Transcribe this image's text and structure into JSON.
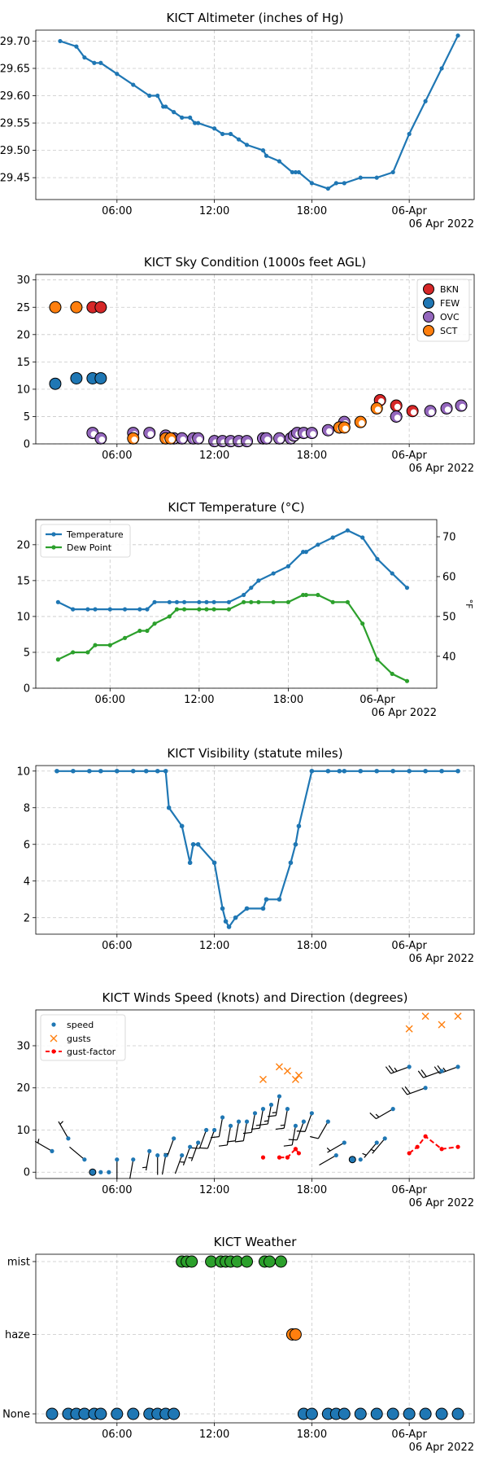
{
  "chart_data": [
    {
      "type": "line",
      "title": "KICT Altimeter (inches of Hg)",
      "date_label": "06 Apr 2022",
      "x_ticks": [
        "06:00",
        "12:00",
        "18:00",
        "06-Apr"
      ],
      "ylim": [
        29.41,
        29.72
      ],
      "y_ticks": [
        "29.45",
        "29.50",
        "29.55",
        "29.60",
        "29.65",
        "29.70"
      ],
      "grid": true,
      "color": "#1f77b4",
      "series": [
        {
          "name": "",
          "x": [
            2.5,
            3.5,
            4.0,
            4.6,
            5.0,
            6.0,
            7.0,
            8.0,
            8.5,
            8.85,
            9.0,
            9.5,
            10.0,
            10.5,
            10.8,
            11.0,
            12.0,
            12.5,
            13.0,
            13.5,
            14.0,
            15.0,
            15.2,
            16.0,
            16.8,
            17.0,
            17.2,
            18.0,
            19.0,
            19.5,
            20.0,
            21.0,
            22.0,
            23.0,
            24.0,
            25.0,
            26.0,
            27.0
          ],
          "y": [
            29.7,
            29.69,
            29.67,
            29.66,
            29.66,
            29.64,
            29.62,
            29.6,
            29.6,
            29.58,
            29.58,
            29.57,
            29.56,
            29.56,
            29.55,
            29.55,
            29.54,
            29.53,
            29.53,
            29.52,
            29.51,
            29.5,
            29.49,
            29.48,
            29.46,
            29.46,
            29.46,
            29.44,
            29.43,
            29.44,
            29.44,
            29.45,
            29.45,
            29.46,
            29.53,
            29.59,
            29.65,
            29.71
          ]
        }
      ]
    },
    {
      "type": "scatter",
      "title": "KICT Sky Condition (1000s feet AGL)",
      "date_label": "06 Apr 2022",
      "x_ticks": [
        "06:00",
        "12:00",
        "18:00",
        "06-Apr"
      ],
      "ylim": [
        0,
        31
      ],
      "y_ticks": [
        "0",
        "5",
        "10",
        "15",
        "20",
        "25",
        "30"
      ],
      "grid": true,
      "legend_position": "top-right",
      "series": [
        {
          "name": "BKN",
          "color": "#d62728",
          "x": [
            4.5,
            5.0,
            22.2,
            23.2,
            24.2
          ],
          "y": [
            25,
            25,
            8,
            7,
            6
          ]
        },
        {
          "name": "FEW",
          "color": "#1f77b4",
          "x": [
            2.2,
            3.5,
            4.5,
            5.0
          ],
          "y": [
            11,
            12,
            12,
            12
          ]
        },
        {
          "name": "OVC",
          "color": "#9467bd",
          "x": [
            4.5,
            5.0,
            7.0,
            8.0,
            9.0,
            9.5,
            10.0,
            10.7,
            11.0,
            12.0,
            12.5,
            13.0,
            13.5,
            14.0,
            15.0,
            15.2,
            16.0,
            16.7,
            16.9,
            17.1,
            17.5,
            18.0,
            19.0,
            19.7,
            20.0,
            23.2,
            25.3,
            26.3,
            27.2
          ],
          "y": [
            2,
            1,
            2,
            2,
            1.5,
            1,
            1,
            1,
            1,
            0.5,
            0.5,
            0.5,
            0.5,
            0.5,
            1,
            1,
            1,
            1,
            1.5,
            2,
            2,
            2,
            2.5,
            3,
            4,
            5,
            6,
            6.5,
            7
          ]
        },
        {
          "name": "SCT",
          "color": "#ff7f0e",
          "x": [
            2.2,
            3.5,
            7.0,
            9.0,
            9.3,
            19.7,
            20.0,
            21.0,
            22.0
          ],
          "y": [
            25,
            25,
            1,
            1,
            1,
            3,
            3,
            4,
            6.5
          ]
        }
      ]
    },
    {
      "type": "line",
      "title": "KICT Temperature (°C)",
      "date_label": "06 Apr 2022",
      "x_ticks": [
        "06:00",
        "12:00",
        "18:00",
        "06-Apr"
      ],
      "ylim": [
        0,
        23.5
      ],
      "y_ticks": [
        "0",
        "5",
        "10",
        "15",
        "20"
      ],
      "y2_ticks": [
        "40",
        "50",
        "60",
        "70"
      ],
      "y2_label": "°F",
      "grid": true,
      "legend_position": "top-left",
      "series": [
        {
          "name": "Temperature",
          "color": "#1f77b4",
          "x": [
            2.5,
            3.5,
            4.5,
            5.0,
            6.0,
            7.0,
            8.0,
            8.5,
            9.0,
            10.0,
            10.5,
            11.0,
            12.0,
            12.5,
            13.0,
            14.0,
            15.0,
            15.5,
            16.0,
            17.0,
            18.0,
            19.0,
            19.2,
            20.0,
            21.0,
            22.0,
            23.0,
            24.0,
            25.0,
            26.0
          ],
          "y": [
            12,
            11,
            11,
            11,
            11,
            11,
            11,
            11,
            12,
            12,
            12,
            12,
            12,
            12,
            12,
            12,
            13,
            14,
            15,
            16,
            17,
            19,
            19,
            20,
            21,
            22,
            21,
            18,
            16,
            14
          ]
        },
        {
          "name": "Dew Point",
          "color": "#2ca02c",
          "x": [
            2.5,
            3.5,
            4.5,
            5.0,
            6.0,
            7.0,
            8.0,
            8.5,
            9.0,
            10.0,
            10.5,
            11.0,
            12.0,
            12.5,
            13.0,
            14.0,
            15.0,
            15.5,
            16.0,
            17.0,
            18.0,
            19.0,
            19.2,
            20.0,
            21.0,
            22.0,
            23.0,
            24.0,
            25.0,
            26.0
          ],
          "y": [
            4,
            5,
            5,
            6,
            6,
            7,
            8,
            8,
            9,
            10,
            11,
            11,
            11,
            11,
            11,
            11,
            12,
            12,
            12,
            12,
            12,
            13,
            13,
            13,
            12,
            12,
            9,
            4,
            2,
            1
          ]
        }
      ]
    },
    {
      "type": "line",
      "title": "KICT Visibility (statute miles)",
      "date_label": "06 Apr 2022",
      "x_ticks": [
        "06:00",
        "12:00",
        "18:00",
        "06-Apr"
      ],
      "ylim": [
        1.1,
        10.3
      ],
      "y_ticks": [
        "2",
        "4",
        "6",
        "8",
        "10"
      ],
      "grid": true,
      "color": "#1f77b4",
      "series": [
        {
          "name": "",
          "x": [
            2.3,
            3.3,
            4.3,
            5.0,
            6.0,
            7.0,
            7.8,
            8.5,
            9.0,
            9.2,
            10.0,
            10.5,
            10.7,
            11.0,
            12.0,
            12.5,
            12.7,
            12.9,
            13.3,
            14.0,
            15.0,
            15.2,
            16.0,
            16.7,
            17.0,
            17.2,
            18.0,
            19.0,
            19.7,
            20.0,
            21.0,
            22.0,
            23.0,
            24.0,
            25.0,
            26.0,
            27.0
          ],
          "y": [
            10,
            10,
            10,
            10,
            10,
            10,
            10,
            10,
            10,
            8,
            7,
            5,
            6,
            6,
            5,
            2.5,
            1.8,
            1.5,
            2,
            2.5,
            2.5,
            3,
            3,
            5,
            6,
            7,
            10,
            10,
            10,
            10,
            10,
            10,
            10,
            10,
            10,
            10,
            10
          ]
        }
      ]
    },
    {
      "type": "scatter",
      "title": "KICT Winds Speed (knots) and Direction (degrees)",
      "date_label": "06 Apr 2022",
      "x_ticks": [
        "06:00",
        "12:00",
        "18:00",
        "06-Apr"
      ],
      "ylim": [
        -1.5,
        38.5
      ],
      "y_ticks": [
        "0",
        "10",
        "20",
        "30"
      ],
      "grid": true,
      "legend_position": "top-left",
      "series": [
        {
          "name": "speed",
          "color": "#1f77b4",
          "x": [
            2.0,
            3.0,
            4.0,
            4.5,
            5.0,
            5.5,
            6.0,
            7.0,
            8.0,
            8.5,
            9.0,
            9.5,
            10.0,
            10.5,
            11.0,
            11.5,
            12.0,
            12.5,
            13.0,
            13.5,
            14.0,
            14.5,
            15.0,
            15.5,
            16.0,
            16.5,
            17.0,
            17.5,
            18.0,
            19.0,
            19.5,
            20.0,
            21.0,
            22.0,
            22.5,
            23.0,
            24.0,
            25.0,
            26.0,
            27.0
          ],
          "y": [
            5,
            8,
            3,
            0,
            0,
            0,
            3,
            3,
            5,
            4,
            4,
            8,
            4,
            6,
            7,
            10,
            10,
            13,
            11,
            12,
            12,
            14,
            15,
            16,
            18,
            15,
            11,
            12,
            14,
            12,
            4,
            7,
            3,
            7,
            8,
            15,
            25,
            20,
            24,
            25
          ]
        },
        {
          "name": "gusts",
          "color": "#ff7f0e",
          "x": [
            15.0,
            16.0,
            16.5,
            17.0,
            17.2,
            24.0,
            25.0,
            26.0,
            27.0
          ],
          "y": [
            22,
            25,
            24,
            22,
            23,
            34,
            37,
            35,
            37
          ]
        },
        {
          "name": "gust-factor",
          "color": "#ff0000",
          "segments": [
            {
              "x": [
                15.0
              ],
              "y": [
                3.5
              ]
            },
            {
              "x": [
                16.0,
                16.5,
                17.0,
                17.2
              ],
              "y": [
                3.5,
                3.5,
                5.5,
                4.5
              ]
            },
            {
              "x": [
                24.0,
                24.5,
                25.0,
                26.0,
                27.0
              ],
              "y": [
                4.5,
                6,
                8.5,
                5.5,
                6
              ]
            }
          ]
        }
      ],
      "barbs": {
        "x": [
          2.0,
          3.0,
          4.0,
          6.0,
          7.0,
          8.0,
          8.5,
          9.0,
          9.5,
          10.0,
          10.5,
          11.0,
          11.5,
          12.0,
          12.5,
          13.0,
          13.5,
          14.0,
          14.5,
          15.0,
          15.5,
          16.0,
          16.5,
          17.0,
          17.5,
          18.0,
          19.0,
          19.5,
          20.0,
          22.0,
          22.5,
          23.0,
          24.0,
          25.0,
          26.0,
          27.0
        ],
        "y": [
          5,
          8,
          3,
          3,
          3,
          5,
          4,
          4,
          8,
          4,
          6,
          7,
          10,
          10,
          13,
          11,
          12,
          12,
          14,
          15,
          16,
          18,
          15,
          11,
          12,
          14,
          12,
          4,
          7,
          7,
          8,
          15,
          25,
          20,
          24,
          25
        ],
        "dir_deg": [
          300,
          330,
          310,
          180,
          190,
          190,
          180,
          190,
          200,
          200,
          200,
          200,
          200,
          200,
          190,
          190,
          190,
          190,
          190,
          190,
          190,
          190,
          190,
          190,
          200,
          200,
          210,
          240,
          240,
          220,
          220,
          240,
          250,
          250,
          250,
          250
        ]
      },
      "calm_markers": {
        "x": [
          4.5,
          20.5
        ],
        "y": [
          0,
          3
        ]
      }
    },
    {
      "type": "scatter",
      "title": "KICT Weather",
      "date_label": "06 Apr 2022",
      "x_ticks": [
        "06:00",
        "12:00",
        "18:00",
        "06-Apr"
      ],
      "categories": [
        "None",
        "haze",
        "mist"
      ],
      "grid": true,
      "series": [
        {
          "name": "mist",
          "color": "#2ca02c",
          "x": [
            10.0,
            10.3,
            10.6,
            11.8,
            12.4,
            12.7,
            13.0,
            13.4,
            14.0,
            15.1,
            15.4,
            16.1
          ],
          "y": [
            "mist",
            "mist",
            "mist",
            "mist",
            "mist",
            "mist",
            "mist",
            "mist",
            "mist",
            "mist",
            "mist",
            "mist"
          ]
        },
        {
          "name": "haze",
          "color": "#ff7f0e",
          "x": [
            16.8,
            17.0
          ],
          "y": [
            "haze",
            "haze"
          ]
        },
        {
          "name": "None",
          "color": "#1f77b4",
          "x": [
            2.0,
            3.0,
            3.5,
            4.0,
            4.6,
            5.0,
            6.0,
            7.0,
            8.0,
            8.5,
            9.0,
            9.5,
            17.5,
            18.0,
            19.0,
            19.5,
            20.0,
            21.0,
            22.0,
            23.0,
            24.0,
            25.0,
            26.0,
            27.0
          ],
          "y": [
            "None",
            "None",
            "None",
            "None",
            "None",
            "None",
            "None",
            "None",
            "None",
            "None",
            "None",
            "None",
            "None",
            "None",
            "None",
            "None",
            "None",
            "None",
            "None",
            "None",
            "None",
            "None",
            "None",
            "None"
          ]
        }
      ]
    }
  ]
}
